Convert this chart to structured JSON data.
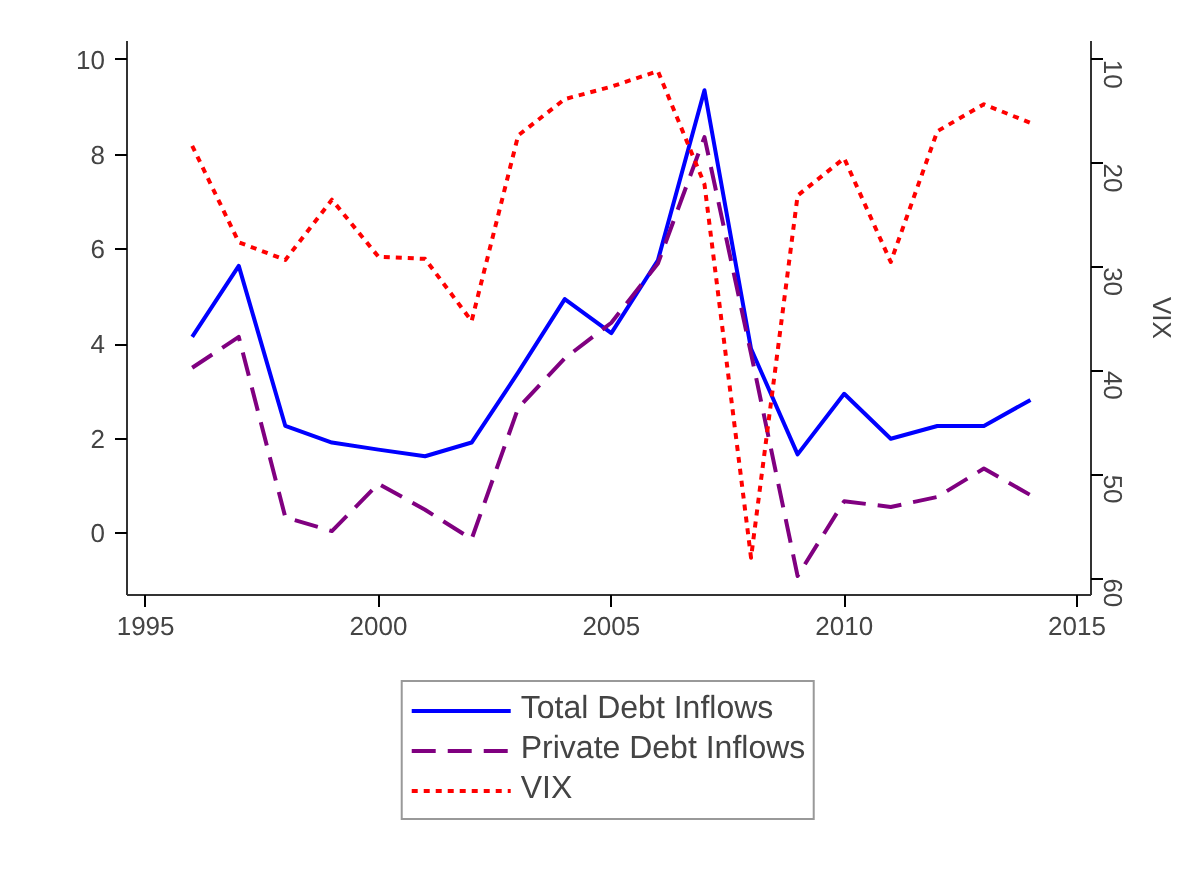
{
  "chart_data": {
    "type": "line",
    "x": [
      1996,
      1997,
      1998,
      1999,
      2000,
      2001,
      2002,
      2003,
      2004,
      2005,
      2006,
      2007,
      2008,
      2009,
      2010,
      2011,
      2012,
      2013,
      2014
    ],
    "y2label": "VIX",
    "legend": "bottom",
    "grid": false,
    "xlim": [
      1994.6,
      2015.3
    ],
    "xticks": [
      1995,
      2000,
      2005,
      2010,
      2015
    ],
    "ylim": [
      -1.3,
      10.4
    ],
    "yticks": [
      0,
      2,
      4,
      6,
      8,
      10
    ],
    "y2lim": [
      61.6,
      8.2
    ],
    "y2ticks": [
      10,
      20,
      30,
      40,
      50,
      60
    ],
    "series": [
      {
        "name": "Total Debt Inflows",
        "color": "#0000ff",
        "line_style": "solid",
        "values": [
          4.15,
          5.65,
          2.27,
          1.92,
          1.77,
          1.63,
          1.92,
          3.4,
          4.95,
          4.23,
          5.77,
          9.36,
          3.9,
          1.67,
          2.95,
          2.0,
          2.27,
          2.27,
          2.82
        ]
      },
      {
        "name": "Private Debt Inflows",
        "color": "#800080",
        "line_style": "dashed",
        "values": [
          3.5,
          4.15,
          0.34,
          0.05,
          1.05,
          0.5,
          -0.12,
          2.65,
          3.7,
          4.45,
          5.7,
          8.37,
          3.8,
          -0.9,
          0.68,
          0.56,
          0.77,
          1.37,
          0.81
        ]
      },
      {
        "name": "VIX",
        "color": "#ff0000",
        "line_style": "dotted",
        "axis": "y2",
        "values": [
          18.3,
          27.6,
          29.3,
          23.5,
          29.0,
          29.2,
          35.2,
          17.3,
          13.8,
          12.6,
          11.1,
          22,
          58,
          23.1,
          19.5,
          29.5,
          16.9,
          14.3,
          16.1
        ]
      }
    ]
  }
}
